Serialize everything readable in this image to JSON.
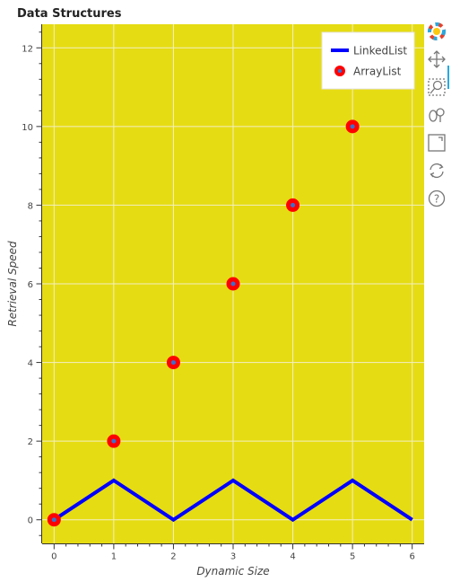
{
  "chart_data": {
    "type": "line",
    "title": "Data Structures",
    "xlabel": "Dynamic Size",
    "ylabel": "Retrieval Speed",
    "xlim": [
      -0.2,
      6.2
    ],
    "ylim": [
      -0.6,
      12.6
    ],
    "x_ticks": [
      0,
      1,
      2,
      3,
      4,
      5,
      6
    ],
    "y_ticks": [
      0,
      2,
      4,
      6,
      8,
      10,
      12
    ],
    "grid": true,
    "legend_position": "top-right",
    "plot_background": "#e6dc13",
    "series": [
      {
        "name": "LinkedList",
        "kind": "line",
        "color": "#0000ff",
        "x": [
          0,
          1,
          2,
          3,
          4,
          5,
          6
        ],
        "y": [
          0,
          1,
          0,
          1,
          0,
          1,
          0
        ]
      },
      {
        "name": "ArrayList",
        "kind": "scatter",
        "color": "#ff0000",
        "x": [
          0,
          1,
          2,
          3,
          4,
          5
        ],
        "y": [
          0,
          2,
          4,
          6,
          8,
          10
        ]
      }
    ]
  },
  "toolbar": {
    "tools": [
      {
        "name": "bokeh-logo-icon"
      },
      {
        "name": "pan-icon",
        "active": true
      },
      {
        "name": "box-zoom-icon"
      },
      {
        "name": "wheel-zoom-icon"
      },
      {
        "name": "save-icon"
      },
      {
        "name": "reset-icon"
      },
      {
        "name": "help-icon"
      }
    ]
  }
}
